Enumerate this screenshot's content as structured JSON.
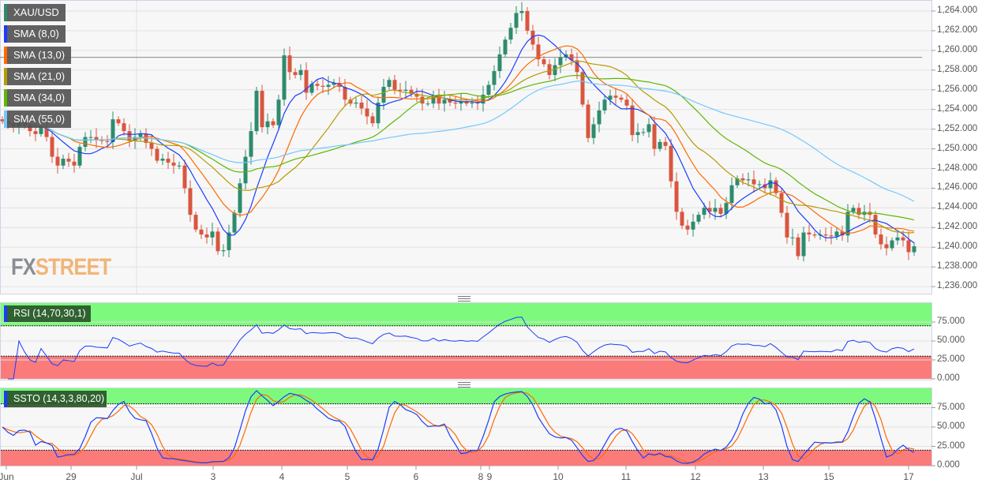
{
  "chart_data": [
    {
      "type": "candlestick",
      "symbol": "XAU/USD",
      "ylim": [
        1235,
        1265
      ],
      "y_ticks": [
        "1,264.000",
        "1,262.000",
        "1,260.000",
        "1,258.000",
        "1,256.000",
        "1,254.000",
        "1,252.000",
        "1,250.000",
        "1,248.000",
        "1,246.000",
        "1,244.000",
        "1,242.000",
        "1,240.000",
        "1,238.000",
        "1,236.000"
      ],
      "x_ticks": [
        "Jun",
        "29",
        "Jul",
        "3",
        "4",
        "5",
        "6",
        "8",
        "9",
        "10",
        "11",
        "12",
        "13",
        "15",
        "17"
      ],
      "reference_line": 1259.3,
      "legend": [
        {
          "label": "XAU/USD",
          "color": "#2e8b6e"
        },
        {
          "label": "SMA (8,0)",
          "color": "#1a3cff",
          "period": 8
        },
        {
          "label": "SMA (13,0)",
          "color": "#ff6a00",
          "period": 13
        },
        {
          "label": "SMA (21,0)",
          "color": "#b39c00",
          "period": 21
        },
        {
          "label": "SMA (34,0)",
          "color": "#5cb800",
          "period": 34
        },
        {
          "label": "SMA (55,0)",
          "color": "#72c8ff",
          "period": 55
        }
      ],
      "colors": {
        "up": "#2e8b6e",
        "down": "#d9553f"
      },
      "closes": [
        1252.8,
        1252.5,
        1252.3,
        1252.8,
        1252.4,
        1251.8,
        1251.5,
        1252.2,
        1251.2,
        1249.2,
        1248.3,
        1249.0,
        1248.7,
        1248.3,
        1250.2,
        1251.2,
        1251.2,
        1250.9,
        1250.8,
        1250.7,
        1253.0,
        1252.6,
        1251.8,
        1250.8,
        1251.2,
        1251.5,
        1250.6,
        1250.0,
        1248.8,
        1249.0,
        1248.6,
        1248.3,
        1248.3,
        1246.0,
        1243.3,
        1241.8,
        1241.3,
        1241.0,
        1241.6,
        1239.6,
        1239.7,
        1241.5,
        1243.5,
        1246.5,
        1249.2,
        1251.8,
        1255.9,
        1252.2,
        1252.8,
        1252.4,
        1255.0,
        1259.5,
        1257.8,
        1257.5,
        1258.0,
        1255.7,
        1256.6,
        1256.4,
        1256.3,
        1256.5,
        1256.7,
        1256.3,
        1255.0,
        1254.6,
        1254.7,
        1254.1,
        1253.3,
        1252.6,
        1254.7,
        1256.3,
        1257.0,
        1256.0,
        1255.9,
        1256.0,
        1255.6,
        1255.3,
        1254.6,
        1254.6,
        1255.4,
        1254.6,
        1255.0,
        1254.7,
        1254.6,
        1254.8,
        1254.6,
        1254.7,
        1254.6,
        1255.5,
        1256.5,
        1257.9,
        1259.6,
        1261.1,
        1262.3,
        1263.8,
        1264.0,
        1262.0,
        1260.6,
        1259.1,
        1258.6,
        1257.5,
        1258.5,
        1259.3,
        1259.6,
        1259.0,
        1257.8,
        1254.5,
        1251.1,
        1252.5,
        1253.9,
        1255.0,
        1255.4,
        1255.2,
        1255.0,
        1254.4,
        1251.4,
        1251.7,
        1251.7,
        1252.5,
        1250.0,
        1250.7,
        1250.3,
        1246.7,
        1243.6,
        1242.2,
        1241.8,
        1242.6,
        1243.3,
        1244.0,
        1243.6,
        1244.0,
        1243.4,
        1244.5,
        1246.3,
        1247.0,
        1246.8,
        1246.9,
        1246.4,
        1246.4,
        1246.0,
        1246.8,
        1245.5,
        1243.5,
        1241.0,
        1241.0,
        1239.1,
        1241.5,
        1241.3,
        1241.2,
        1241.3,
        1241.2,
        1241.1,
        1241.6,
        1241.2,
        1243.6,
        1244.0,
        1243.3,
        1243.6,
        1243.3,
        1241.3,
        1240.3,
        1239.9,
        1240.7,
        1241.0,
        1240.7,
        1239.5,
        1240.1
      ]
    },
    {
      "type": "line",
      "label": "RSI (14,70,30,1)",
      "period": 14,
      "overbought": 70,
      "oversold": 30,
      "ylim": [
        0,
        100
      ],
      "y_ticks": [
        "75.000",
        "50.000",
        "25.000",
        "0.000"
      ],
      "color": "#1a3cff",
      "zones": {
        "overbought": "#7dfa7d",
        "oversold": "#fb7b7b"
      }
    },
    {
      "type": "line",
      "label": "SSTO (14,3,3,80,20)",
      "k_period": 14,
      "k_smooth": 3,
      "d_period": 3,
      "overbought": 80,
      "oversold": 20,
      "ylim": [
        0,
        100
      ],
      "y_ticks": [
        "75.000",
        "50.000",
        "25.000",
        "0.000"
      ],
      "colors": {
        "k": "#1a3cff",
        "d": "#ff6a00"
      },
      "zones": {
        "overbought": "#7dfa7d",
        "oversold": "#fb7b7b"
      }
    }
  ],
  "logo": {
    "part1": "FX",
    "part2": "STREET",
    "color1": "#8a8d93",
    "color2": "#f1b577"
  }
}
